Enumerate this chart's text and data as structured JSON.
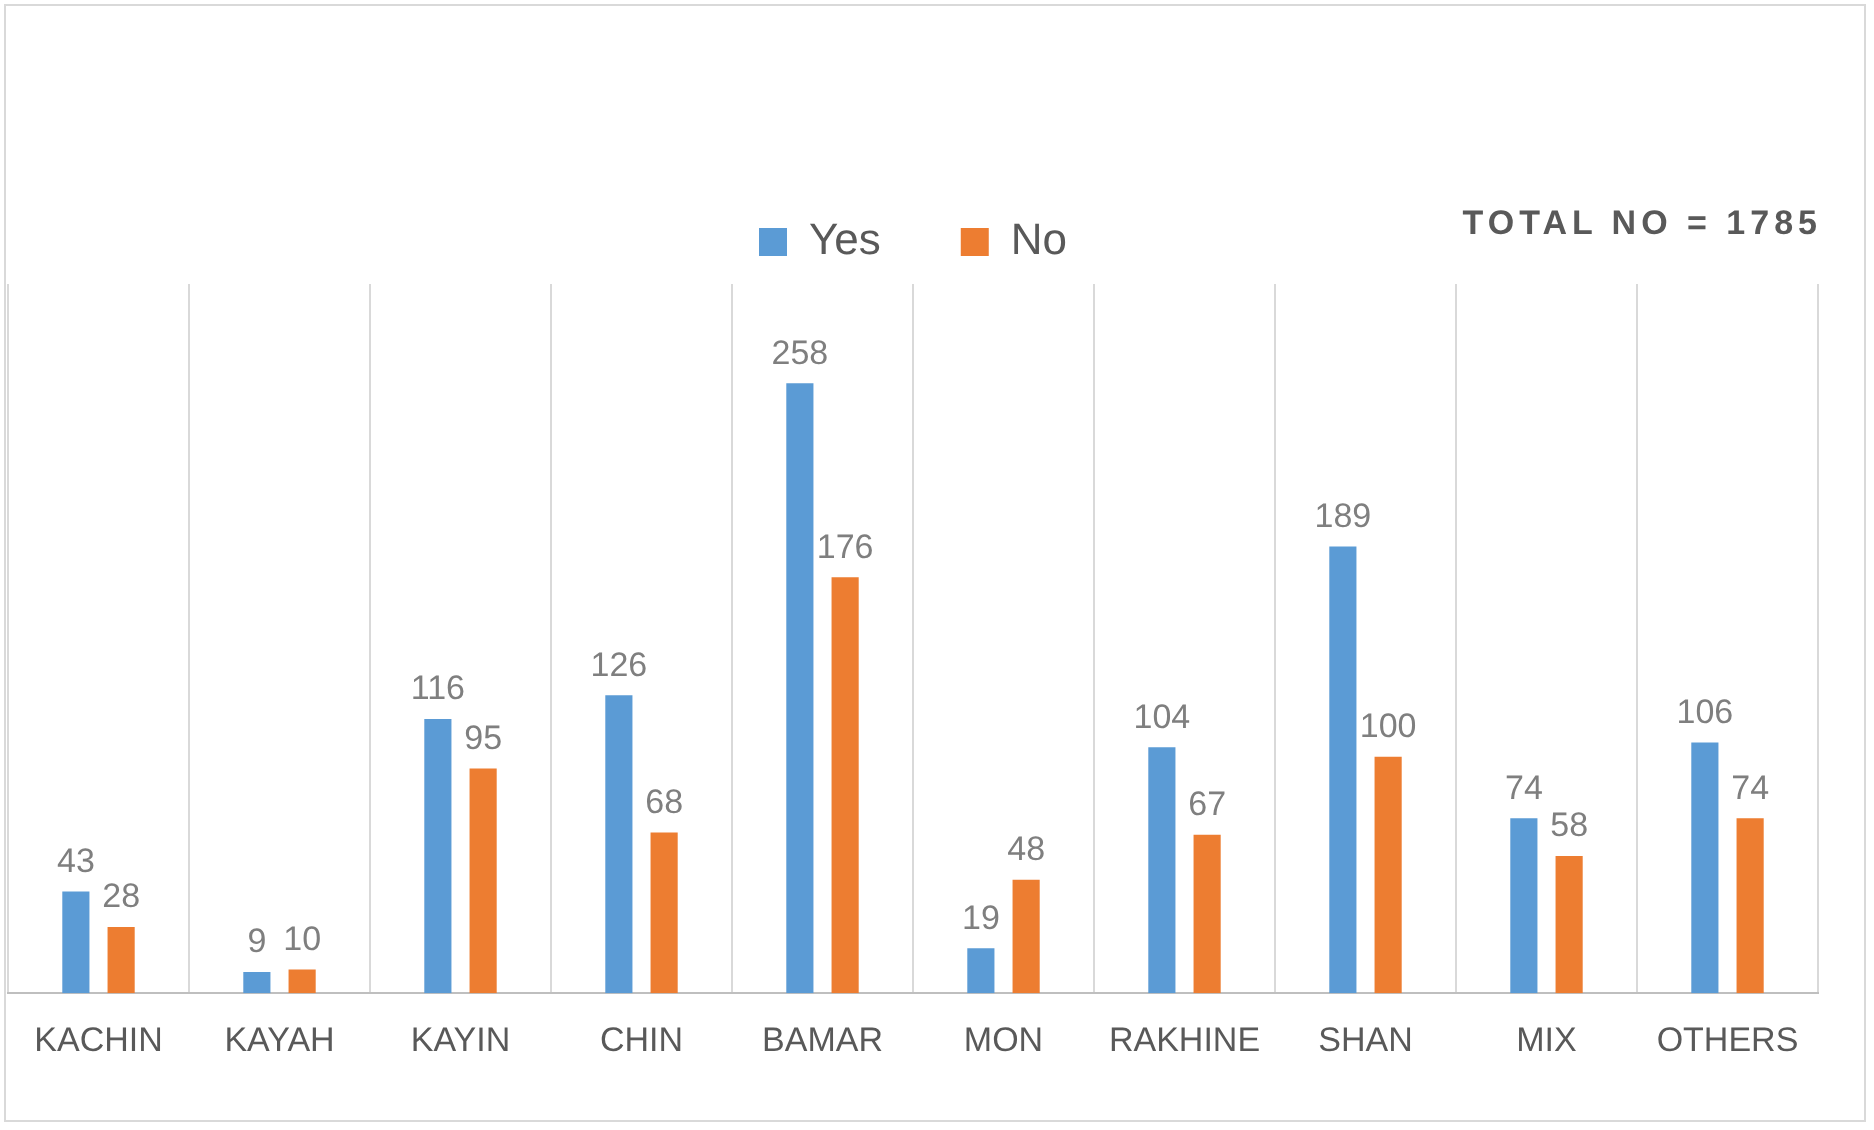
{
  "chart_data": {
    "type": "bar",
    "categories": [
      "KACHIN",
      "KAYAH",
      "KAYIN",
      "CHIN",
      "BAMAR",
      "MON",
      "RAKHINE",
      "SHAN",
      "MIX",
      "OTHERS"
    ],
    "series": [
      {
        "name": "Yes",
        "color": "#5b9bd5",
        "values": [
          43,
          9,
          116,
          126,
          258,
          19,
          104,
          189,
          74,
          106
        ]
      },
      {
        "name": "No",
        "color": "#ed7d31",
        "values": [
          28,
          10,
          95,
          68,
          176,
          48,
          67,
          100,
          58,
          74
        ]
      }
    ],
    "annotations": [
      "TOTAL NO = 1785"
    ],
    "data_labels": true,
    "grid": "x",
    "legend": "top",
    "tick_labels": "x"
  }
}
